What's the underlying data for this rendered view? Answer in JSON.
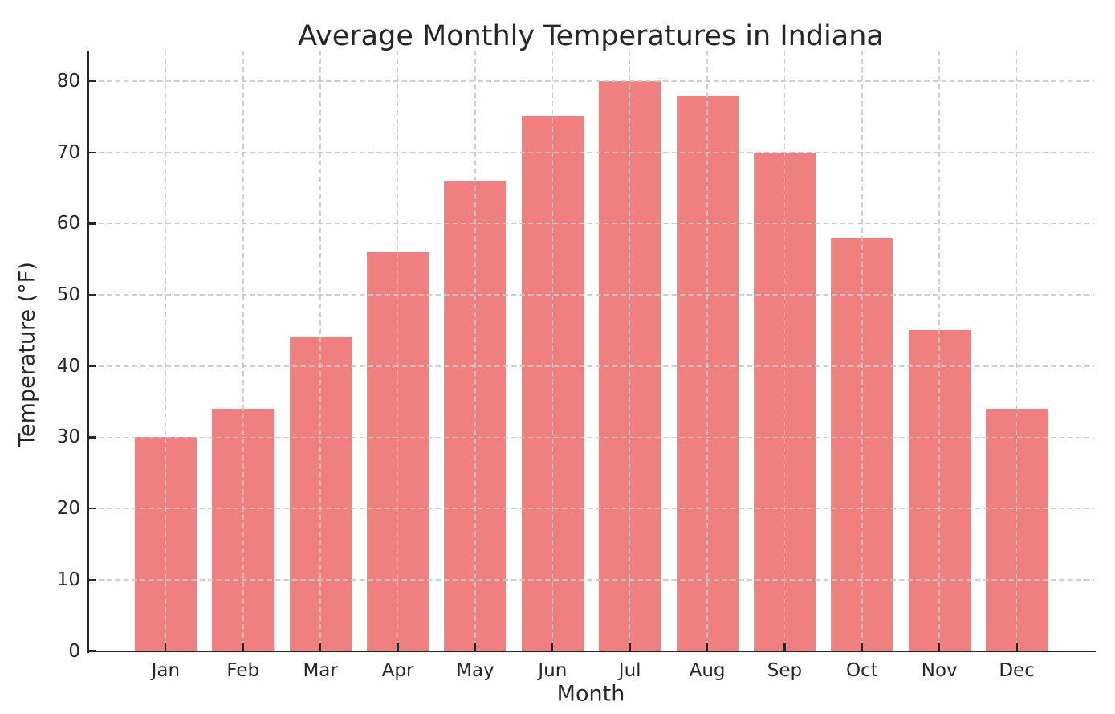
{
  "chart_data": {
    "type": "bar",
    "title": "Average Monthly Temperatures in Indiana",
    "xlabel": "Month",
    "ylabel": "Temperature (°F)",
    "categories": [
      "Jan",
      "Feb",
      "Mar",
      "Apr",
      "May",
      "Jun",
      "Jul",
      "Aug",
      "Sep",
      "Oct",
      "Nov",
      "Dec"
    ],
    "values": [
      30,
      34,
      44,
      56,
      66,
      75,
      80,
      78,
      70,
      58,
      45,
      34
    ],
    "yticks": [
      0,
      10,
      20,
      30,
      40,
      50,
      60,
      70,
      80
    ],
    "ylim": [
      0,
      84
    ],
    "bar_color": "#F08080",
    "grid": true,
    "grid_style": "dashed",
    "grid_color": "#c8c8c8",
    "axis_color": "#262626",
    "background_color": "#ffffff",
    "legend": "none"
  }
}
